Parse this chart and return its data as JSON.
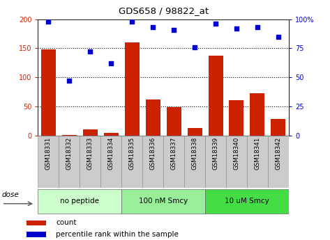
{
  "title": "GDS658 / 98822_at",
  "samples": [
    "GSM18331",
    "GSM18332",
    "GSM18333",
    "GSM18334",
    "GSM18335",
    "GSM18336",
    "GSM18337",
    "GSM18338",
    "GSM18339",
    "GSM18340",
    "GSM18341",
    "GSM18342"
  ],
  "count_values": [
    148,
    1,
    11,
    5,
    160,
    62,
    49,
    13,
    137,
    61,
    73,
    29
  ],
  "percentile_values": [
    98,
    47,
    72,
    62,
    98,
    93,
    91,
    76,
    96,
    92,
    93,
    85
  ],
  "groups": [
    {
      "label": "no peptide",
      "indices": [
        0,
        1,
        2,
        3
      ],
      "color": "#ccffcc"
    },
    {
      "label": "100 nM Smcy",
      "indices": [
        4,
        5,
        6,
        7
      ],
      "color": "#99ee99"
    },
    {
      "label": "10 uM Smcy",
      "indices": [
        8,
        9,
        10,
        11
      ],
      "color": "#44dd44"
    }
  ],
  "bar_color": "#cc2200",
  "scatter_color": "#0000cc",
  "left_axis_color": "#cc2200",
  "right_axis_color": "#0000cc",
  "ylim_left": [
    0,
    200
  ],
  "ylim_right": [
    0,
    100
  ],
  "yticks_left": [
    0,
    50,
    100,
    150,
    200
  ],
  "ytick_labels_left": [
    "0",
    "50",
    "100",
    "150",
    "200"
  ],
  "yticks_right": [
    0,
    25,
    50,
    75,
    100
  ],
  "ytick_labels_right": [
    "0",
    "25",
    "50",
    "75",
    "100%"
  ],
  "dose_label": "dose",
  "legend_count": "count",
  "legend_percentile": "percentile rank within the sample",
  "background_color": "#ffffff",
  "plot_bg_color": "#ffffff",
  "grid_color": "#000000",
  "tick_bg_color": "#cccccc"
}
